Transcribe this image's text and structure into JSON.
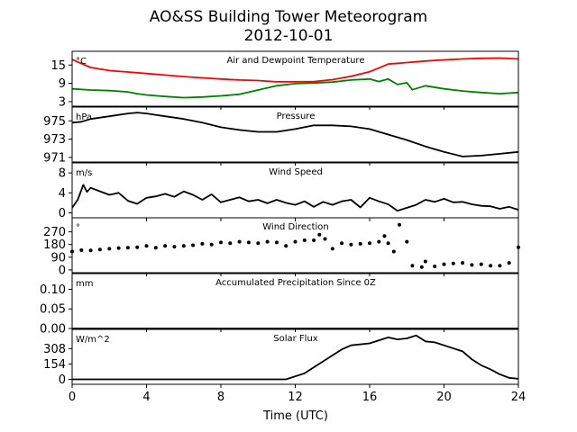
{
  "title": "AO&SS Building Tower Meteorogram",
  "subtitle": "2012-10-01",
  "chart_data": {
    "type": "line",
    "title": "AO&SS Building Tower Meteorogram",
    "subtitle": "2012-10-01",
    "xlabel": "Time (UTC)",
    "xlim": [
      0,
      24
    ],
    "x_ticks": [
      0,
      4,
      8,
      12,
      16,
      20,
      24
    ],
    "panels": [
      {
        "title": "Air and Dewpoint Temperature",
        "unit_label": "°C",
        "ylim": [
          1.5,
          19.5
        ],
        "y_ticks": [
          3,
          9,
          15
        ],
        "series": [
          {
            "key": "air",
            "color": "#ff0000",
            "x": [
              0,
              0.5,
              1,
              2,
              3,
              4,
              5,
              6,
              7,
              8,
              9,
              10,
              11,
              12,
              13,
              14,
              15,
              16,
              16.5,
              17,
              18,
              19,
              20,
              21,
              22,
              23,
              24
            ],
            "y": [
              16.8,
              15.5,
              14.2,
              13.2,
              12.7,
              12.2,
              11.7,
              11.2,
              10.8,
              10.4,
              10.1,
              9.9,
              9.5,
              9.5,
              9.6,
              10.2,
              11.3,
              12.8,
              14.0,
              15.3,
              15.8,
              16.3,
              16.7,
              17.0,
              17.2,
              17.3,
              17.0
            ]
          },
          {
            "key": "dewpoint",
            "color": "#008000",
            "x": [
              0,
              1,
              2,
              3,
              3.5,
              4,
              5,
              6,
              7,
              8,
              9,
              10,
              11,
              12,
              13,
              14,
              15,
              16,
              16.5,
              17,
              17.5,
              18,
              18.3,
              19,
              20,
              21,
              22,
              23,
              24
            ],
            "y": [
              7.2,
              6.8,
              6.6,
              6.2,
              5.6,
              5.2,
              4.7,
              4.3,
              4.5,
              4.9,
              5.4,
              6.8,
              8.2,
              8.9,
              9.1,
              9.4,
              10.1,
              10.4,
              9.6,
              10.4,
              8.6,
              9.2,
              6.9,
              8.2,
              7.2,
              6.5,
              6.0,
              5.6,
              6.0
            ]
          }
        ]
      },
      {
        "title": "Pressure",
        "unit_label": "hPa",
        "ylim": [
          970.5,
          976.5
        ],
        "y_ticks": [
          971,
          973,
          975
        ],
        "series": [
          {
            "key": "pressure",
            "color": "#000000",
            "x": [
              0,
              0.5,
              1,
              2,
              3,
              3.5,
              4,
              5,
              6,
              7,
              8,
              9,
              10,
              11,
              12,
              13,
              14,
              15,
              16,
              17,
              18,
              19,
              20,
              21,
              22,
              23,
              24
            ],
            "y": [
              974.8,
              974.9,
              975.2,
              975.5,
              975.8,
              975.9,
              975.8,
              975.5,
              975.2,
              974.8,
              974.3,
              974.0,
              973.8,
              973.8,
              974.1,
              974.5,
              974.5,
              974.4,
              974.1,
              973.5,
              972.9,
              972.2,
              971.6,
              971.1,
              971.2,
              971.4,
              971.6
            ]
          }
        ]
      },
      {
        "title": "Wind Speed",
        "unit_label": "m/s",
        "ylim": [
          -1,
          10
        ],
        "y_ticks": [
          0,
          4,
          8
        ],
        "series": [
          {
            "key": "wind_speed",
            "color": "#000000",
            "x": [
              0,
              0.3,
              0.6,
              0.8,
              1,
              1.5,
              2,
              2.5,
              3,
              3.5,
              4,
              4.5,
              5,
              5.5,
              6,
              6.5,
              7,
              7.5,
              8,
              8.5,
              9,
              9.5,
              10,
              10.5,
              11,
              11.5,
              12,
              12.5,
              13,
              13.5,
              14,
              14.5,
              15,
              15.5,
              16,
              16.5,
              17,
              17.5,
              18,
              18.5,
              19,
              19.5,
              20,
              20.5,
              21,
              21.5,
              22,
              22.5,
              23,
              23.5,
              24
            ],
            "y": [
              1.0,
              2.6,
              5.6,
              4.2,
              5.0,
              4.3,
              3.6,
              4.0,
              2.4,
              1.8,
              3.0,
              3.3,
              3.8,
              3.2,
              4.3,
              3.6,
              2.6,
              3.7,
              2.1,
              2.6,
              3.1,
              2.3,
              2.6,
              1.9,
              2.6,
              2.0,
              1.6,
              2.3,
              1.2,
              2.2,
              1.6,
              2.3,
              2.6,
              1.1,
              3.0,
              2.3,
              1.7,
              0.4,
              1.0,
              1.6,
              2.6,
              2.2,
              2.8,
              2.1,
              2.2,
              1.7,
              1.4,
              1.3,
              0.8,
              1.2,
              0.6
            ]
          }
        ]
      },
      {
        "title": "Wind Direction",
        "unit_label": "°",
        "ylim": [
          -20,
          370
        ],
        "y_ticks": [
          0,
          90,
          180,
          270
        ],
        "series": [
          {
            "key": "wind_direction",
            "color": "#000000",
            "style": "dots",
            "x": [
              0,
              0.5,
              1,
              1.5,
              2,
              2.5,
              3,
              3.5,
              4,
              4.5,
              5,
              5.5,
              6,
              6.5,
              7,
              7.5,
              8,
              8.5,
              9,
              9.5,
              10,
              10.5,
              11,
              11.5,
              12,
              12.5,
              13,
              13.3,
              13.6,
              14,
              14.5,
              15,
              15.5,
              16,
              16.5,
              16.8,
              17,
              17.3,
              17.6,
              18,
              18.3,
              18.8,
              19,
              19.5,
              20,
              20.5,
              21,
              21.5,
              22,
              22.5,
              23,
              23.5,
              24
            ],
            "y": [
              130,
              140,
              138,
              145,
              150,
              155,
              158,
              160,
              170,
              158,
              170,
              165,
              170,
              175,
              185,
              180,
              195,
              190,
              200,
              195,
              190,
              200,
              195,
              170,
              200,
              210,
              210,
              250,
              220,
              150,
              190,
              180,
              185,
              190,
              200,
              240,
              190,
              130,
              320,
              200,
              30,
              20,
              60,
              25,
              40,
              45,
              50,
              35,
              40,
              30,
              30,
              50,
              160
            ]
          }
        ]
      },
      {
        "title": "Accumulated Precipitation Since 0Z",
        "unit_label": "mm",
        "ylim": [
          0,
          0.14
        ],
        "y_ticks": [
          0.0,
          0.05,
          0.1
        ],
        "y_tick_labels": [
          "0.00",
          "0.05",
          "0.10"
        ],
        "series": [
          {
            "key": "precipitation",
            "color": "#000000",
            "x": [
              0,
              24
            ],
            "y": [
              0,
              0
            ]
          }
        ]
      },
      {
        "title": "Solar Flux",
        "unit_label": "W/m^2",
        "ylim": [
          -50,
          500
        ],
        "y_ticks": [
          0,
          154,
          308
        ],
        "series": [
          {
            "key": "solar_flux",
            "color": "#000000",
            "x": [
              0,
              11.5,
              12.5,
              13.5,
              14.5,
              15,
              16,
              17,
              17.5,
              18,
              18.5,
              19,
              19.5,
              20,
              21,
              21.5,
              22,
              22.5,
              23,
              23.5,
              24
            ],
            "y": [
              0,
              0,
              60,
              180,
              300,
              340,
              360,
              420,
              400,
              410,
              440,
              380,
              370,
              340,
              280,
              200,
              140,
              100,
              50,
              15,
              5
            ]
          }
        ]
      }
    ]
  }
}
